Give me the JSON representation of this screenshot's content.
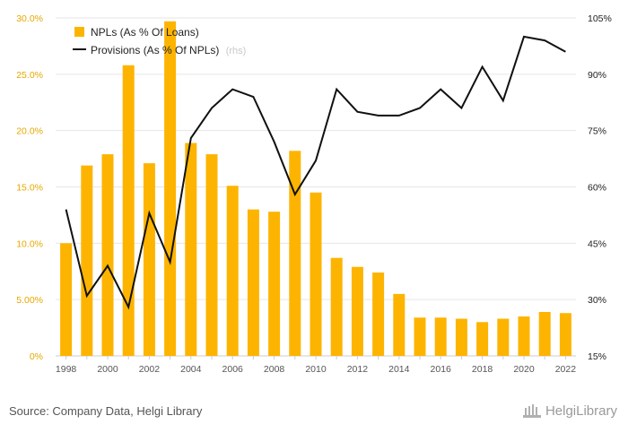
{
  "chart_data": {
    "type": "bar",
    "categories": [
      "1998",
      "1999",
      "2000",
      "2001",
      "2002",
      "2003",
      "2004",
      "2005",
      "2006",
      "2007",
      "2008",
      "2009",
      "2010",
      "2011",
      "2012",
      "2013",
      "2014",
      "2015",
      "2016",
      "2017",
      "2018",
      "2019",
      "2020",
      "2021",
      "2022"
    ],
    "x_tick_labels": [
      "1998",
      "2000",
      "2002",
      "2004",
      "2006",
      "2008",
      "2010",
      "2012",
      "2014",
      "2016",
      "2018",
      "2020",
      "2022"
    ],
    "series": [
      {
        "name": "NPLs (As % Of Loans)",
        "type": "bar",
        "axis": "left",
        "color": "#fdb400",
        "values": [
          10.0,
          16.9,
          17.9,
          25.8,
          17.1,
          29.7,
          18.9,
          17.9,
          15.1,
          13.0,
          12.8,
          18.2,
          14.5,
          8.7,
          7.9,
          7.4,
          5.5,
          3.4,
          3.4,
          3.3,
          3.0,
          3.3,
          3.5,
          3.9,
          3.8
        ]
      },
      {
        "name": "Provisions (As % Of NPLs)",
        "type": "line",
        "axis": "right",
        "color": "#111111",
        "values": [
          54,
          31,
          39,
          28,
          53,
          40,
          73,
          81,
          86,
          84,
          72,
          58,
          67,
          86,
          80,
          79,
          79,
          81,
          86,
          81,
          92,
          83,
          100,
          99,
          96
        ]
      }
    ],
    "title": "",
    "xlabel": "",
    "ylabel": "",
    "ylim": [
      0,
      30
    ],
    "y2lim": [
      15,
      105
    ],
    "y_ticks": [
      "0%",
      "5.00%",
      "10.0%",
      "15.0%",
      "20.0%",
      "25.0%",
      "30.0%"
    ],
    "y2_ticks": [
      "15%",
      "30%",
      "45%",
      "60%",
      "75%",
      "90%",
      "105%"
    ],
    "legend": {
      "position": "top-left",
      "entries": [
        "NPLs (As % Of Loans)",
        "Provisions (As % Of NPLs)"
      ],
      "rhs_note": "(rhs)"
    },
    "grid": true
  },
  "footer": {
    "source": "Source: Company Data, Helgi Library",
    "brand": "HelgiLibrary"
  },
  "colors": {
    "bar": "#fdb400",
    "line": "#111111",
    "grid": "#e6e6e6"
  }
}
